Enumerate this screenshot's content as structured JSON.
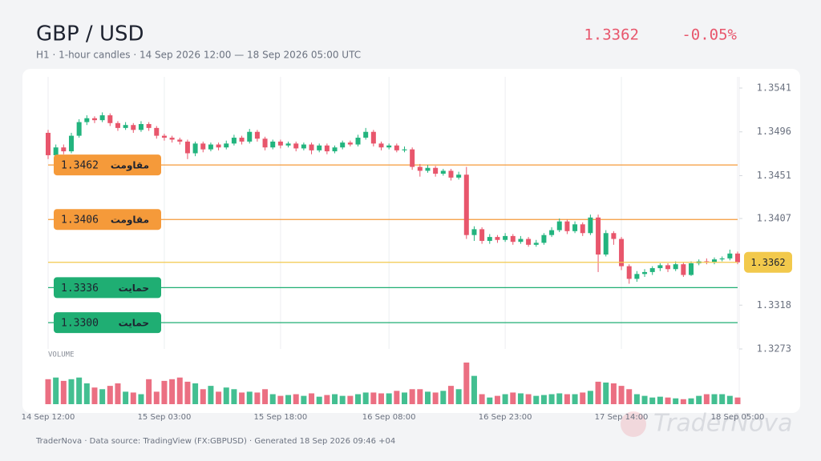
{
  "header": {
    "title": "GBP / USD",
    "subtitle": "H1 · 1-hour candles · 14 Sep 2026 12:00 — 18 Sep 2026 05:00 UTC",
    "last_price": 1.3362,
    "change": {
      "value": -0.05,
      "label": "-0.05%"
    }
  },
  "chart_data": {
    "type": "candlestick",
    "categories": [
      "14 Sep 12:00",
      null,
      null,
      null,
      null,
      null,
      null,
      null,
      null,
      null,
      null,
      null,
      null,
      null,
      null,
      "15 Sep 03:00",
      null,
      null,
      null,
      null,
      null,
      null,
      null,
      null,
      null,
      null,
      null,
      null,
      null,
      null,
      "15 Sep 18:00",
      null,
      null,
      null,
      null,
      null,
      null,
      null,
      null,
      null,
      null,
      null,
      null,
      null,
      "16 Sep 08:00",
      null,
      null,
      null,
      null,
      null,
      null,
      null,
      null,
      null,
      null,
      null,
      null,
      null,
      null,
      "16 Sep 23:00",
      null,
      null,
      null,
      null,
      null,
      null,
      null,
      null,
      null,
      null,
      null,
      null,
      null,
      null,
      "17 Sep 14:00",
      null,
      null,
      null,
      null,
      null,
      null,
      null,
      null,
      null,
      null,
      null,
      null,
      null,
      null,
      "18 Sep 05:00"
    ],
    "open": [
      1.3495,
      1.3472,
      1.348,
      1.3476,
      1.3492,
      1.3506,
      1.351,
      1.3508,
      1.3513,
      1.3505,
      1.35,
      1.3503,
      1.3498,
      1.3504,
      1.35,
      1.3492,
      1.349,
      1.3488,
      1.3486,
      1.3474,
      1.3484,
      1.3478,
      1.3483,
      1.348,
      1.3484,
      1.349,
      1.3486,
      1.3496,
      1.3489,
      1.348,
      1.3486,
      1.3482,
      1.3484,
      1.3479,
      1.3483,
      1.3477,
      1.3482,
      1.3476,
      1.348,
      1.3485,
      1.3483,
      1.349,
      1.3496,
      1.3484,
      1.348,
      1.3482,
      1.3477,
      1.3478,
      1.346,
      1.3456,
      1.3459,
      1.3453,
      1.3456,
      1.3449,
      1.3452,
      1.339,
      1.3396,
      1.3384,
      1.3388,
      1.3385,
      1.3389,
      1.3383,
      1.3386,
      1.338,
      1.3382,
      1.339,
      1.3395,
      1.3404,
      1.3394,
      1.3401,
      1.3392,
      1.3408,
      1.337,
      1.3392,
      1.3386,
      1.3358,
      1.3345,
      1.335,
      1.3352,
      1.3356,
      1.3359,
      1.3355,
      1.336,
      1.3349,
      1.3361,
      1.3363,
      1.3362,
      1.3365,
      1.3366,
      1.3371
    ],
    "high": [
      1.3498,
      1.3483,
      1.3483,
      1.3495,
      1.3509,
      1.3513,
      1.3512,
      1.3516,
      1.3515,
      1.3507,
      1.3506,
      1.3505,
      1.3507,
      1.3506,
      1.3502,
      1.3494,
      1.3492,
      1.349,
      1.3488,
      1.3486,
      1.3486,
      1.3485,
      1.3485,
      1.3487,
      1.3493,
      1.3492,
      1.3499,
      1.3498,
      1.3491,
      1.3488,
      1.3488,
      1.3486,
      1.3486,
      1.3485,
      1.3485,
      1.3484,
      1.3484,
      1.3482,
      1.3487,
      1.3487,
      1.3493,
      1.35,
      1.3498,
      1.3486,
      1.3484,
      1.3484,
      1.3481,
      1.348,
      1.3463,
      1.3462,
      1.3461,
      1.3458,
      1.3458,
      1.3455,
      1.346,
      1.3399,
      1.3398,
      1.3391,
      1.339,
      1.3392,
      1.3391,
      1.3389,
      1.3388,
      1.3385,
      1.3392,
      1.3398,
      1.3407,
      1.3406,
      1.3404,
      1.3403,
      1.3411,
      1.3411,
      1.3395,
      1.3394,
      1.3388,
      1.336,
      1.3353,
      1.3355,
      1.3358,
      1.3361,
      1.3361,
      1.3363,
      1.3362,
      1.3363,
      1.3365,
      1.3366,
      1.3367,
      1.3368,
      1.3375,
      1.3373
    ],
    "low": [
      1.3468,
      1.3469,
      1.3473,
      1.3474,
      1.349,
      1.3503,
      1.3505,
      1.3506,
      1.3502,
      1.3497,
      1.3498,
      1.3495,
      1.3496,
      1.3497,
      1.3489,
      1.3487,
      1.3485,
      1.3483,
      1.3468,
      1.3471,
      1.3475,
      1.3476,
      1.3477,
      1.3478,
      1.3482,
      1.3483,
      1.3484,
      1.3486,
      1.3477,
      1.3478,
      1.3479,
      1.348,
      1.3476,
      1.3477,
      1.3473,
      1.3475,
      1.3473,
      1.3474,
      1.3478,
      1.3481,
      1.3481,
      1.3488,
      1.3481,
      1.3477,
      1.3478,
      1.3475,
      1.3475,
      1.3457,
      1.345,
      1.3454,
      1.345,
      1.3451,
      1.3446,
      1.3447,
      1.3386,
      1.3384,
      1.3381,
      1.3381,
      1.3382,
      1.3383,
      1.338,
      1.3381,
      1.3378,
      1.3378,
      1.338,
      1.3388,
      1.3393,
      1.3391,
      1.3392,
      1.3389,
      1.339,
      1.3352,
      1.3368,
      1.338,
      1.3354,
      1.334,
      1.3342,
      1.3347,
      1.3349,
      1.3353,
      1.3352,
      1.3353,
      1.3347,
      1.3348,
      1.3359,
      1.336,
      1.336,
      1.3363,
      1.3364,
      1.336
    ],
    "close": [
      1.3472,
      1.348,
      1.3476,
      1.3492,
      1.3506,
      1.351,
      1.3508,
      1.3513,
      1.3505,
      1.35,
      1.3503,
      1.3498,
      1.3504,
      1.35,
      1.3492,
      1.349,
      1.3488,
      1.3486,
      1.3474,
      1.3484,
      1.3478,
      1.3483,
      1.348,
      1.3484,
      1.349,
      1.3486,
      1.3496,
      1.3489,
      1.348,
      1.3486,
      1.3482,
      1.3484,
      1.3479,
      1.3483,
      1.3477,
      1.3482,
      1.3476,
      1.348,
      1.3485,
      1.3483,
      1.349,
      1.3496,
      1.3484,
      1.348,
      1.3482,
      1.3477,
      1.3478,
      1.346,
      1.3456,
      1.3459,
      1.3453,
      1.3456,
      1.3449,
      1.3452,
      1.339,
      1.3396,
      1.3384,
      1.3388,
      1.3385,
      1.3389,
      1.3383,
      1.3386,
      1.338,
      1.3382,
      1.339,
      1.3395,
      1.3404,
      1.3394,
      1.3401,
      1.3392,
      1.3408,
      1.337,
      1.3392,
      1.3386,
      1.3358,
      1.3345,
      1.335,
      1.3352,
      1.3356,
      1.3359,
      1.3355,
      1.336,
      1.3349,
      1.3361,
      1.3363,
      1.3362,
      1.3365,
      1.3366,
      1.3371,
      1.3362
    ],
    "volume": [
      30,
      32,
      28,
      30,
      32,
      25,
      20,
      18,
      22,
      25,
      15,
      14,
      12,
      30,
      15,
      28,
      30,
      32,
      27,
      25,
      18,
      22,
      15,
      20,
      18,
      14,
      15,
      14,
      18,
      12,
      10,
      11,
      12,
      10,
      13,
      9,
      11,
      12,
      10,
      10,
      12,
      14,
      14,
      13,
      13,
      16,
      14,
      18,
      18,
      15,
      14,
      16,
      22,
      18,
      50,
      34,
      12,
      8,
      10,
      12,
      14,
      13,
      12,
      10,
      11,
      12,
      13,
      12,
      12,
      14,
      16,
      27,
      26,
      25,
      22,
      18,
      12,
      10,
      8,
      9,
      8,
      7,
      6,
      7,
      10,
      12,
      12,
      12,
      10,
      8
    ],
    "volume_label": "VOLUME",
    "up_color": "#22b47e",
    "down_color": "#e8566c",
    "ylim": [
      1.3273,
      1.3541
    ],
    "yticks": [
      1.3541,
      1.3496,
      1.3451,
      1.3407,
      1.3318,
      1.3273
    ],
    "last_price_color": "#f2c94c",
    "levels": [
      {
        "value": 1.3462,
        "label": "مقاومت",
        "color": "#f59a3a"
      },
      {
        "value": 1.3406,
        "label": "مقاومت",
        "color": "#f59a3a"
      },
      {
        "value": 1.3336,
        "label": "حمایت",
        "color": "#1fae73"
      },
      {
        "value": 1.33,
        "price_label": "1.3300",
        "label": "حمایت",
        "color": "#1fae73"
      }
    ]
  },
  "footer": "TraderNova · Data source: TradingView (FX:GBPUSD) · Generated 18 Sep 2026 09:46 +04",
  "watermark": "TraderNova"
}
